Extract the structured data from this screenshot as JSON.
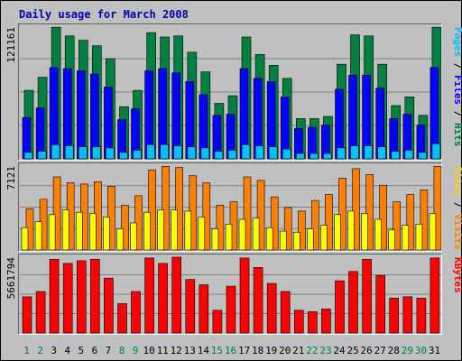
{
  "chart_data": {
    "type": "bar",
    "title": "Daily usage for March 2008",
    "categories": [
      "1",
      "2",
      "3",
      "4",
      "5",
      "6",
      "7",
      "8",
      "9",
      "10",
      "11",
      "12",
      "13",
      "14",
      "15",
      "16",
      "17",
      "18",
      "19",
      "20",
      "21",
      "22",
      "23",
      "24",
      "25",
      "26",
      "27",
      "28",
      "29",
      "30",
      "31"
    ],
    "weekend_days": [
      "1",
      "2",
      "8",
      "9",
      "15",
      "16",
      "22",
      "23",
      "29",
      "30"
    ],
    "panels": [
      {
        "id": "hits",
        "ymax": 121161,
        "ymax_label": "121161",
        "right_label": [
          "Pages",
          "Files",
          "Hits"
        ],
        "series": [
          {
            "name": "Hits",
            "color": "#008040",
            "values": [
              63000,
              75000,
              121000,
              113000,
              109000,
              104000,
              92000,
              48000,
              63000,
              116000,
              112000,
              113000,
              98000,
              80000,
              51000,
              58000,
              112000,
              96000,
              86000,
              74000,
              37000,
              37000,
              39000,
              87000,
              114000,
              113000,
              87000,
              49000,
              57000,
              40000,
              121000
            ]
          },
          {
            "name": "Files",
            "color": "#0000ff",
            "values": [
              38000,
              47000,
              84000,
              83000,
              81000,
              78000,
              66000,
              36000,
              46000,
              81000,
              83000,
              79000,
              71000,
              59000,
              40000,
              41000,
              83000,
              74000,
              71000,
              57000,
              28000,
              29000,
              31000,
              64000,
              77000,
              77000,
              65000,
              37000,
              41000,
              31000,
              84000
            ]
          },
          {
            "name": "Pages",
            "color": "#00c0ff",
            "values": [
              6000,
              7000,
              13000,
              12000,
              11000,
              11000,
              10000,
              6000,
              8000,
              13000,
              13000,
              12000,
              11000,
              10000,
              7000,
              8000,
              13000,
              12000,
              11000,
              9000,
              5000,
              5000,
              5000,
              10000,
              12000,
              12000,
              11000,
              7000,
              8000,
              6000,
              14000
            ]
          }
        ]
      },
      {
        "id": "visits",
        "ymax": 7121,
        "ymax_label": "7121",
        "right_label": [
          "Sites",
          "Visits"
        ],
        "series": [
          {
            "name": "Visits",
            "color": "#ff8000",
            "values": [
              3500,
              4300,
              6200,
              5700,
              5600,
              5800,
              5400,
              3800,
              4600,
              6800,
              7100,
              7000,
              6300,
              5700,
              3800,
              4100,
              6200,
              5900,
              4500,
              3600,
              3300,
              4200,
              4700,
              6100,
              6900,
              6400,
              5500,
              4100,
              4700,
              5100,
              7100
            ]
          },
          {
            "name": "Sites",
            "color": "#ffff00",
            "values": [
              1900,
              2400,
              3000,
              3400,
              3200,
              3100,
              2800,
              1800,
              2300,
              3200,
              3400,
              3400,
              3300,
              2800,
              1800,
              2200,
              2600,
              2700,
              1900,
              1600,
              1500,
              1800,
              2100,
              3000,
              3300,
              3100,
              2600,
              1700,
              2100,
              2200,
              3100
            ]
          }
        ]
      },
      {
        "id": "kbytes",
        "ymax": 5661794,
        "ymax_label": "5661794",
        "right_label": [
          "KBytes"
        ],
        "series": [
          {
            "name": "KBytes",
            "color": "#ff0000",
            "values": [
              2700000,
              3100000,
              5500000,
              5200000,
              5400000,
              5500000,
              4100000,
              2200000,
              3100000,
              5600000,
              5200000,
              5661794,
              4000000,
              3600000,
              1700000,
              3500000,
              5600000,
              4900000,
              3700000,
              3100000,
              1700000,
              1600000,
              1800000,
              3900000,
              4600000,
              5500000,
              4300000,
              2600000,
              2700000,
              2600000,
              5600000
            ]
          }
        ]
      }
    ]
  }
}
